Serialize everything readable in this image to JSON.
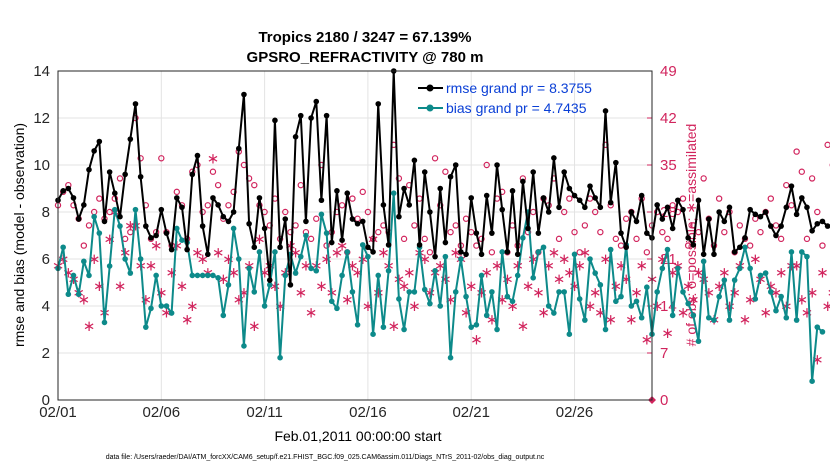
{
  "chart_data": {
    "type": "line",
    "title": "Tropics 2180 / 3247 = 67.139%",
    "subtitle": "GPSRO_REFRACTIVITY @ 780 m",
    "xlabel": "Feb.01,2011 00:00:00 start",
    "ylabel_left": "rmse and bias (model - observation)",
    "ylabel_right": "# of obs: o=possible; ∗=assimilated",
    "xlim": [
      0,
      28.75
    ],
    "ylim_left": [
      0,
      14
    ],
    "ylim_right": [
      0,
      49
    ],
    "x_ticks": [
      0,
      5,
      10,
      15,
      20,
      25
    ],
    "x_tick_labels": [
      "02/01",
      "02/06",
      "02/11",
      "02/16",
      "02/21",
      "02/26"
    ],
    "y_ticks_left": [
      0,
      2,
      4,
      6,
      8,
      10,
      12,
      14
    ],
    "y_ticks_right": [
      0,
      7,
      14,
      21,
      28,
      35,
      42,
      49
    ],
    "grid": true,
    "legend_position": "top-right",
    "x_step": 0.25,
    "series": [
      {
        "name": "rmse grand pr = 8.3755",
        "axis": "left",
        "color": "#000000",
        "values": [
          8.5,
          8.9,
          9.0,
          8.6,
          7.7,
          8.3,
          9.8,
          10.6,
          11.0,
          7.6,
          9.7,
          8.8,
          7.8,
          9.6,
          11.1,
          12.6,
          9.5,
          7.4,
          6.9,
          7.0,
          8.1,
          7.1,
          6.4,
          8.6,
          8.2,
          6.4,
          9.6,
          10.4,
          7.4,
          6.2,
          8.6,
          8.3,
          7.8,
          7.6,
          8.0,
          10.7,
          13.0,
          7.5,
          6.5,
          8.6,
          7.3,
          5.1,
          11.9,
          6.5,
          7.7,
          4.9,
          11.2,
          12.1,
          7.6,
          12.0,
          12.7,
          8.5,
          12.1,
          6.7,
          8.9,
          6.8,
          8.8,
          7.7,
          7.5,
          7.6,
          6.5,
          6.3,
          12.6,
          8.3,
          6.6,
          14.0,
          7.8,
          9.0,
          8.3,
          10.2,
          6.6,
          9.7,
          8.0,
          6.1,
          9.0,
          6.7,
          9.5,
          10.0,
          6.3,
          6.2,
          8.6,
          7.1,
          6.2,
          8.7,
          7.1,
          10.0,
          8.1,
          6.3,
          8.9,
          6.2,
          9.3,
          7.3,
          9.7,
          7.1,
          8.6,
          8.0,
          10.3,
          8.2,
          9.7,
          9.0,
          8.7,
          8.5,
          8.2,
          9.1,
          8.6,
          8.2,
          12.3,
          8.4,
          10.1,
          7.1,
          6.5,
          8.0,
          7.6,
          8.7,
          7.1,
          6.9,
          8.3,
          7.7,
          8.2,
          7.3,
          8.5,
          8.1,
          6.9,
          6.6,
          8.5,
          6.2,
          7.7,
          6.2,
          8.0,
          7.6,
          8.2,
          6.3,
          6.5,
          6.9,
          8.1,
          7.9,
          7.8,
          8.0,
          7.4,
          7.0,
          7.4,
          8.2,
          9.1,
          7.9,
          8.6,
          8.2,
          7.2,
          7.5,
          7.6,
          7.4
        ]
      },
      {
        "name": "bias grand pr = 4.7435",
        "axis": "left",
        "color": "#0d8a8a",
        "values": [
          5.6,
          6.5,
          4.5,
          5.3,
          4.5,
          5.9,
          5.3,
          7.8,
          7.1,
          3.3,
          5.7,
          8.1,
          7.4,
          6.0,
          5.4,
          8.1,
          6.0,
          3.1,
          3.9,
          5.3,
          4.0,
          4.0,
          3.7,
          7.3,
          6.8,
          6.7,
          5.3,
          5.3,
          5.3,
          5.3,
          5.3,
          5.2,
          3.6,
          4.9,
          7.3,
          6.0,
          2.3,
          5.6,
          4.6,
          6.3,
          4.0,
          4.9,
          6.3,
          1.8,
          5.3,
          6.2,
          5.4,
          6.1,
          7.0,
          5.6,
          5.5,
          7.9,
          7.1,
          4.2,
          3.9,
          5.3,
          6.3,
          4.6,
          3.2,
          6.6,
          6.1,
          2.8,
          5.3,
          3.1,
          5.5,
          8.8,
          4.3,
          3.0,
          4.6,
          4.6,
          6.5,
          4.7,
          4.1,
          5.5,
          4.0,
          6.1,
          1.8,
          4.6,
          6.0,
          4.4,
          3.1,
          3.2,
          5.3,
          3.6,
          4.6,
          3.0,
          6.3,
          4.4,
          4.2,
          5.3,
          6.9,
          8.0,
          5.2,
          6.3,
          6.5,
          4.0,
          3.7,
          4.6,
          4.6,
          2.8,
          6.2,
          4.3,
          3.4,
          6.0,
          5.4,
          4.9,
          3.0,
          6.4,
          4.2,
          4.4,
          6.6,
          4.0,
          4.2,
          3.5,
          4.8,
          2.8,
          4.6,
          5.6,
          6.4,
          3.6,
          5.6,
          4.6,
          4.1,
          3.6,
          2.5,
          5.9,
          3.5,
          3.4,
          4.4,
          5.1,
          3.4,
          5.1,
          5.6,
          6.5,
          5.6,
          4.3,
          5.3,
          5.4,
          4.6,
          3.8,
          4.4,
          3.5,
          6.3,
          3.4,
          6.3,
          6.1,
          0.8,
          3.1,
          2.9
        ]
      },
      {
        "name": "possible",
        "axis": "right",
        "marker": "o",
        "color": "#d1245d",
        "values": [
          29,
          31,
          32,
          29,
          27,
          23,
          26,
          28,
          30,
          27,
          28,
          30,
          33,
          24,
          25,
          42,
          36,
          29,
          24,
          25,
          36,
          25,
          23,
          31,
          29,
          24,
          34,
          35,
          28,
          29,
          34,
          32,
          27,
          29,
          31,
          37,
          35,
          33,
          32,
          29,
          28,
          26,
          30,
          24,
          28,
          25,
          26,
          32,
          25,
          24,
          27,
          35,
          23,
          25,
          28,
          29,
          22,
          30,
          27,
          31,
          28,
          24,
          25,
          26,
          25,
          38,
          33,
          24,
          32,
          26,
          30,
          24,
          22,
          36,
          29,
          34,
          25,
          26,
          23,
          27,
          25,
          23,
          24,
          35,
          22,
          30,
          31,
          22,
          26,
          23,
          33,
          25,
          28,
          22,
          30,
          29,
          33,
          24,
          28,
          30,
          25,
          22,
          26,
          30,
          28,
          25,
          38,
          29,
          24,
          23,
          27,
          28,
          24,
          30,
          22,
          26,
          28,
          25,
          24,
          29,
          28,
          30,
          23,
          26,
          25,
          33,
          27,
          23,
          30,
          25,
          28,
          22,
          26,
          24,
          23,
          27,
          25,
          28,
          30,
          26,
          24,
          32,
          29,
          37,
          34,
          24,
          33,
          28,
          23,
          38,
          35
        ]
      },
      {
        "name": "assimilated",
        "axis": "right",
        "marker": "*",
        "color": "#d1245d",
        "values": [
          20,
          21,
          19,
          18,
          16,
          15,
          11,
          21,
          17,
          13,
          24,
          28,
          17,
          22,
          26,
          26,
          20,
          15,
          20,
          23,
          16,
          13,
          19,
          23,
          17,
          12,
          14,
          22,
          21,
          19,
          36,
          22,
          18,
          21,
          19,
          15,
          16,
          20,
          11,
          24,
          19,
          20,
          17,
          14,
          19,
          23,
          22,
          16,
          20,
          13,
          20,
          17,
          21,
          16,
          22,
          23,
          15,
          20,
          19,
          21,
          14,
          24,
          16,
          22,
          20,
          11,
          18,
          17,
          19,
          14,
          22,
          21,
          16,
          19,
          20,
          18,
          15,
          22,
          21,
          13,
          17,
          9,
          16,
          19,
          12,
          20,
          15,
          18,
          14,
          20,
          11,
          17,
          21,
          16,
          13,
          20,
          22,
          18,
          21,
          19,
          17,
          20,
          22,
          14,
          16,
          13,
          21,
          12,
          17,
          20,
          18,
          12,
          16,
          20,
          9,
          18,
          14,
          21,
          10,
          19,
          20,
          13,
          17,
          15,
          19,
          18,
          16,
          12,
          17,
          19,
          14,
          16,
          20,
          12,
          15,
          21,
          18,
          13,
          17,
          16,
          19,
          14,
          20,
          20,
          15,
          13,
          16,
          6,
          19,
          14,
          16
        ]
      }
    ],
    "footer": "data file: /Users/raeder/DAI/ATM_forcXX/CAM6_setup/f.e21.FHIST_BGC.f09_025.CAM6assim.011/Diags_NTrS_2011-02/obs_diag_output.nc"
  },
  "colors": {
    "rmse": "#000000",
    "bias": "#0d8a8a",
    "obs": "#d1245d",
    "legend_text": "#0a3fd6"
  }
}
